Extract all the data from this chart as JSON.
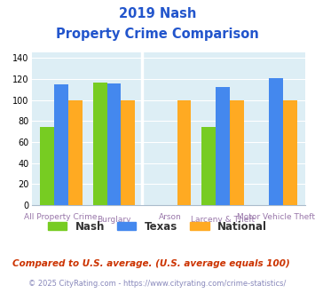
{
  "title_line1": "2019 Nash",
  "title_line2": "Property Crime Comparison",
  "nash_vals": [
    74,
    117,
    null,
    74,
    null
  ],
  "texas_vals": [
    115,
    116,
    null,
    112,
    121
  ],
  "national_vals": [
    100,
    100,
    100,
    100,
    100
  ],
  "group_positions": [
    0.8,
    1.7,
    2.65,
    3.55,
    4.45
  ],
  "xtick_top": [
    "",
    "Burglary",
    "",
    "Larceny & Theft",
    ""
  ],
  "xtick_bottom": [
    "All Property Crime",
    "",
    "Arson",
    "",
    "Motor Vehicle Theft"
  ],
  "bar_width": 0.24,
  "colors": {
    "nash": "#77cc22",
    "texas": "#4488ee",
    "national": "#ffaa22"
  },
  "ylim": [
    0,
    145
  ],
  "yticks": [
    0,
    20,
    40,
    60,
    80,
    100,
    120,
    140
  ],
  "background_color": "#ddeef5",
  "label_color": "#9977aa",
  "title_color": "#2255cc",
  "footer_color": "#cc3300",
  "copyright_color": "#8888bb",
  "grid_color": "#c8dde8",
  "footer_text": "Compared to U.S. average. (U.S. average equals 100)",
  "copyright_text": "© 2025 CityRating.com - https://www.cityrating.com/crime-statistics/"
}
